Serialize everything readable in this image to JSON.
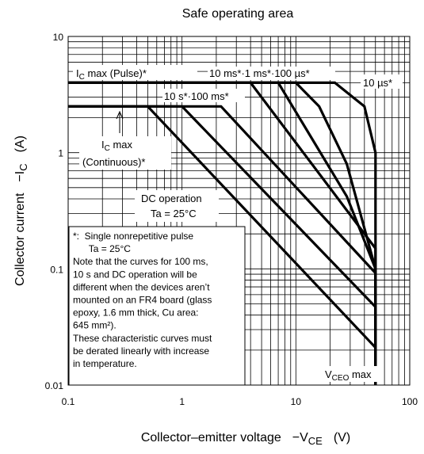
{
  "chart_data": {
    "type": "line",
    "title": "Safe operating area",
    "xlabel": "Collector–emitter voltage",
    "xlabel_symbol": "−V",
    "xlabel_sub": "CE",
    "xlabel_unit": "(V)",
    "ylabel": "Collector current",
    "ylabel_symbol": "−I",
    "ylabel_sub": "C",
    "ylabel_unit": "(A)",
    "x_scale": "log",
    "y_scale": "log",
    "xlim": [
      0.1,
      100
    ],
    "ylim": [
      0.01,
      10
    ],
    "x_ticks": [
      {
        "value": 0.1,
        "label": "0.1"
      },
      {
        "value": 1,
        "label": "1"
      },
      {
        "value": 10,
        "label": "10"
      },
      {
        "value": 100,
        "label": "100"
      }
    ],
    "y_ticks": [
      {
        "value": 10,
        "label": "10"
      },
      {
        "value": 1,
        "label": "1"
      },
      {
        "value": 0.1,
        "label": "0.1"
      },
      {
        "value": 0.01,
        "label": "0.01"
      }
    ],
    "grid": true,
    "series": [
      {
        "name": "10 µs*",
        "points": [
          [
            0.1,
            4
          ],
          [
            22,
            4
          ],
          [
            40,
            2.5
          ],
          [
            50,
            1.0
          ],
          [
            50,
            0.01
          ]
        ]
      },
      {
        "name": "100 µs*",
        "points": [
          [
            0.1,
            4
          ],
          [
            10,
            4
          ],
          [
            16,
            2.5
          ],
          [
            28,
            0.8
          ],
          [
            50,
            0.1
          ],
          [
            50,
            0.01
          ]
        ]
      },
      {
        "name": "1 ms*",
        "points": [
          [
            0.1,
            4
          ],
          [
            7,
            4
          ],
          [
            28,
            0.42
          ],
          [
            50,
            0.1
          ],
          [
            50,
            0.01
          ]
        ]
      },
      {
        "name": "10 ms*",
        "points": [
          [
            0.1,
            4
          ],
          [
            4,
            4
          ],
          [
            50,
            0.15
          ],
          [
            50,
            0.01
          ]
        ]
      },
      {
        "name": "100 ms*",
        "points": [
          [
            0.1,
            2.5
          ],
          [
            2.2,
            2.5
          ],
          [
            50,
            0.092
          ],
          [
            50,
            0.01
          ]
        ]
      },
      {
        "name": "10 s*",
        "points": [
          [
            0.1,
            2.5
          ],
          [
            1.0,
            2.5
          ],
          [
            50,
            0.047
          ],
          [
            50,
            0.01
          ]
        ]
      },
      {
        "name": "DC operation",
        "points": [
          [
            0.1,
            2.5
          ],
          [
            0.5,
            2.5
          ],
          [
            50,
            0.021
          ],
          [
            50,
            0.01
          ]
        ]
      }
    ],
    "annotations": {
      "ic_pulse_main": "I",
      "ic_pulse_sub": "C",
      "ic_pulse_rest": " max (Pulse)*",
      "label_10ms_1ms_100us": "10 ms*·1 ms*·100 µs*",
      "label_10us": "10 µs*",
      "label_10s_100ms": "10 s*·100 ms*",
      "ic_cont_main": "I",
      "ic_cont_sub": "C",
      "ic_cont_rest": " max",
      "ic_cont_line2": "(Continuous)*",
      "dc_line1": "DC operation",
      "dc_line2": "Ta = 25°C",
      "vceo_main": "V",
      "vceo_sub": "CEO",
      "vceo_rest": " max",
      "note_lines": [
        "*:  Single nonrepetitive pulse",
        "      Ta = 25°C",
        "Note that the curves for 100 ms,",
        "10 s and DC operation will be",
        "different when the devices aren’t",
        "mounted on an FR4 board (glass",
        "epoxy, 1.6 mm thick, Cu area:",
        "645 mm²).",
        "These characteristic curves must",
        "be derated linearly with increase",
        "in temperature."
      ]
    }
  }
}
